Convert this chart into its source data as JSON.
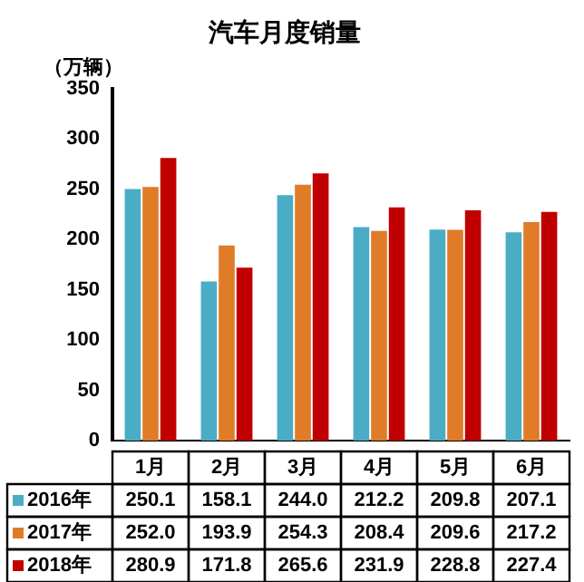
{
  "chart_data": {
    "type": "bar",
    "title": "汽车月度销量",
    "ylabel": "（万辆）",
    "categories": [
      "1月",
      "2月",
      "3月",
      "4月",
      "5月",
      "6月"
    ],
    "series": [
      {
        "name": "2016年",
        "color": "#4bacc6",
        "values": [
          250.1,
          158.1,
          244.0,
          212.2,
          209.8,
          207.1
        ],
        "value_labels": [
          "250.1",
          "158.1",
          "244.0",
          "212.2",
          "209.8",
          "207.1"
        ]
      },
      {
        "name": "2017年",
        "color": "#e07b28",
        "values": [
          252.0,
          193.9,
          254.3,
          208.4,
          209.6,
          217.2
        ],
        "value_labels": [
          "252.0",
          "193.9",
          "254.3",
          "208.4",
          "209.6",
          "217.2"
        ]
      },
      {
        "name": "2018年",
        "color": "#c00000",
        "values": [
          280.9,
          171.8,
          265.6,
          231.9,
          228.8,
          227.4
        ],
        "value_labels": [
          "280.9",
          "171.8",
          "265.6",
          "231.9",
          "228.8",
          "227.4"
        ]
      }
    ],
    "ylim": [
      0,
      350
    ],
    "yticks": [
      0,
      50,
      100,
      150,
      200,
      250,
      300,
      350
    ],
    "grid": false,
    "legend": "bottom"
  }
}
